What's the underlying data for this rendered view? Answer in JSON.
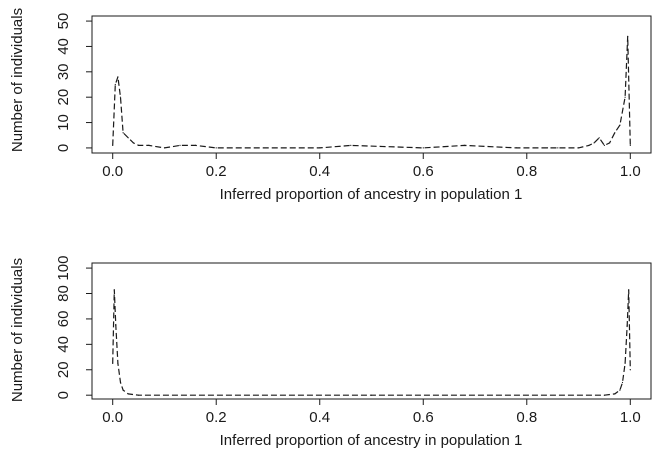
{
  "chart_data": [
    {
      "type": "line",
      "xlabel": "Inferred proportion of ancestry in population 1",
      "ylabel": "Number of individuals",
      "xlim": [
        -0.04,
        1.04
      ],
      "ylim": [
        -2,
        52
      ],
      "xticks": [
        "0.0",
        "0.2",
        "0.4",
        "0.6",
        "0.8",
        "1.0"
      ],
      "yticks": [
        "0",
        "10",
        "20",
        "30",
        "40",
        "50"
      ],
      "grid": false,
      "series": [
        {
          "x": [
            0.0,
            0.005,
            0.01,
            0.015,
            0.02,
            0.03,
            0.04,
            0.05,
            0.07,
            0.1,
            0.13,
            0.16,
            0.2,
            0.4,
            0.46,
            0.6,
            0.68,
            0.78,
            0.84,
            0.86,
            0.9,
            0.92,
            0.93,
            0.94,
            0.95,
            0.96,
            0.97,
            0.98,
            0.99,
            0.995,
            1.0
          ],
          "y": [
            1,
            25,
            28,
            20,
            6,
            4,
            2,
            1,
            1,
            0,
            1,
            1,
            0,
            0,
            1,
            0,
            1,
            0,
            0,
            0,
            0,
            1,
            2,
            4,
            1,
            2,
            6,
            9,
            20,
            44,
            1
          ]
        }
      ]
    },
    {
      "type": "line",
      "xlabel": "Inferred proportion of ancestry in population 1",
      "ylabel": "Number of individuals",
      "xlim": [
        -0.04,
        1.04
      ],
      "ylim": [
        -3,
        104
      ],
      "xticks": [
        "0.0",
        "0.2",
        "0.4",
        "0.6",
        "0.8",
        "1.0"
      ],
      "yticks": [
        "0",
        "20",
        "40",
        "60",
        "80",
        "100"
      ],
      "grid": false,
      "series": [
        {
          "x": [
            0.0,
            0.003,
            0.006,
            0.01,
            0.015,
            0.02,
            0.03,
            0.05,
            0.5,
            0.95,
            0.97,
            0.98,
            0.985,
            0.99,
            0.994,
            0.997,
            1.0
          ],
          "y": [
            25,
            83,
            55,
            25,
            10,
            4,
            1,
            0,
            0,
            0,
            1,
            4,
            10,
            25,
            55,
            83,
            20
          ]
        }
      ]
    }
  ]
}
